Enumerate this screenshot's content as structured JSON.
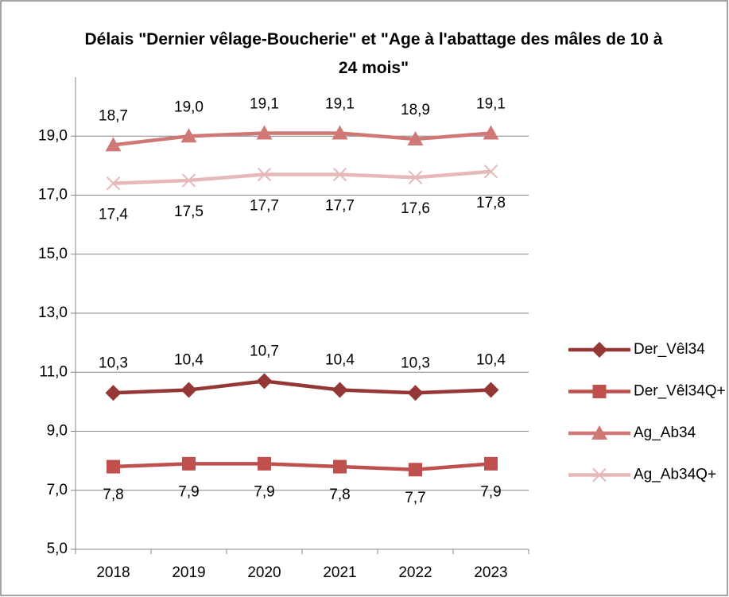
{
  "chart_data": {
    "type": "line",
    "title": "Délais \"Dernier vêlage-Boucherie\" et \"Age à l'abattage des mâles de 10 à 24 mois\"",
    "categories": [
      "2018",
      "2019",
      "2020",
      "2021",
      "2022",
      "2023"
    ],
    "ylim": [
      5,
      21
    ],
    "yticks": [
      {
        "value": 5,
        "label": "5,0"
      },
      {
        "value": 7,
        "label": "7,0"
      },
      {
        "value": 9,
        "label": "9,0"
      },
      {
        "value": 11,
        "label": "11,0"
      },
      {
        "value": 13,
        "label": "13,0"
      },
      {
        "value": 15,
        "label": "15,0"
      },
      {
        "value": 17,
        "label": "17,0"
      },
      {
        "value": 19,
        "label": "19,0"
      }
    ],
    "grid": true,
    "legend": "right",
    "series": [
      {
        "name": "Der_Vêl34",
        "color": "#953735",
        "marker": "diamond",
        "values": [
          10.3,
          10.4,
          10.7,
          10.4,
          10.3,
          10.4
        ],
        "value_labels": [
          "10,3",
          "10,4",
          "10,7",
          "10,4",
          "10,3",
          "10,4"
        ]
      },
      {
        "name": "Der_Vêl34Q+",
        "color": "#c0504d",
        "marker": "square",
        "values": [
          7.8,
          7.9,
          7.9,
          7.8,
          7.7,
          7.9
        ],
        "value_labels": [
          "7,8",
          "7,9",
          "7,9",
          "7,8",
          "7,7",
          "7,9"
        ]
      },
      {
        "name": "Ag_Ab34",
        "color": "#d07876",
        "marker": "triangle",
        "values": [
          18.7,
          19.0,
          19.1,
          19.1,
          18.9,
          19.1
        ],
        "value_labels": [
          "18,7",
          "19,0",
          "19,1",
          "19,1",
          "18,9",
          "19,1"
        ]
      },
      {
        "name": "Ag_Ab34Q+",
        "color": "#e6b9b8",
        "marker": "x",
        "values": [
          17.4,
          17.5,
          17.7,
          17.7,
          17.6,
          17.8
        ],
        "value_labels": [
          "17,4",
          "17,5",
          "17,7",
          "17,7",
          "17,6",
          "17,8"
        ]
      }
    ]
  }
}
